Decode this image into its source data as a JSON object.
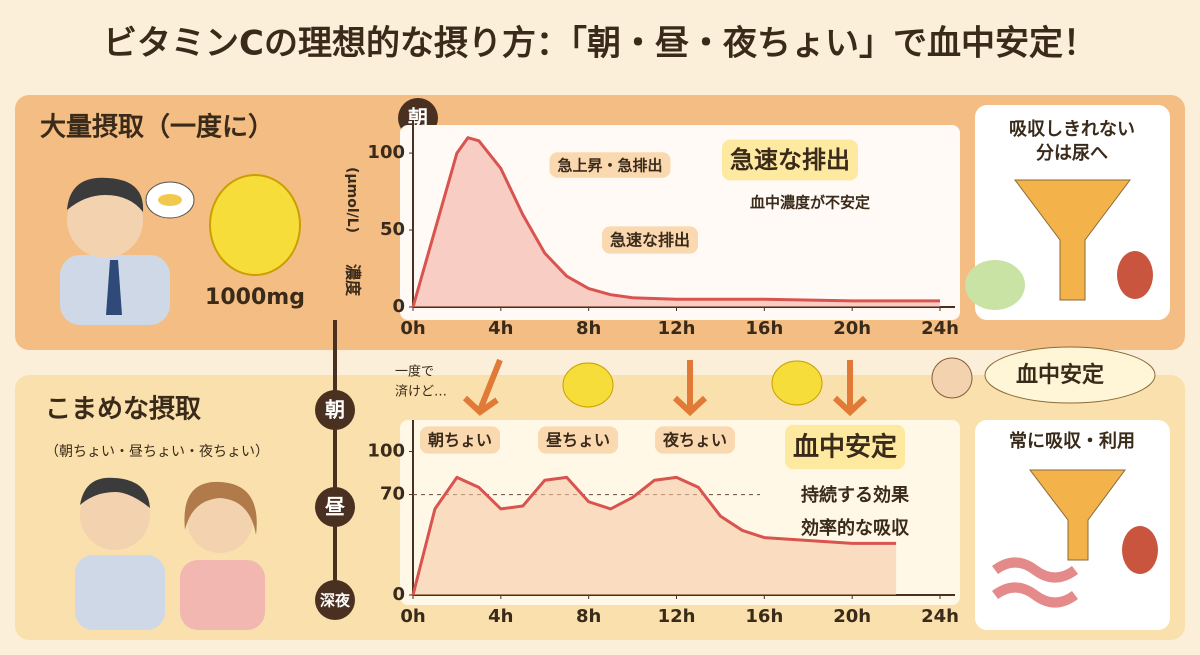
{
  "title": "ビタミンCの理想的な摂り方：「朝・昼・夜ちょい」で血中安定！",
  "top_panel": {
    "heading": "大量摂取（一度に）",
    "dose": "1000mg",
    "time_label": "朝",
    "side_note": [
      "吸収しきれない",
      "分は尿へ"
    ]
  },
  "timeline": [
    "朝",
    "昼",
    "深夜"
  ],
  "bottom_panel": {
    "heading": "こまめな摂取",
    "subheading": "（朝ちょい・昼ちょい・夜ちょい）",
    "aside": [
      "一度で",
      "済けど…"
    ],
    "bubble": "血中安定",
    "side_note": "常に吸収・利用"
  },
  "chart_data": [
    {
      "type": "line",
      "y_label": "濃度",
      "y_unit": "(µmol/L)",
      "color": "#d9534f",
      "fill": "#f3a99a",
      "x": [
        0,
        1,
        2,
        2.5,
        3,
        4,
        5,
        6,
        7,
        8,
        9,
        10,
        12,
        16,
        20,
        24
      ],
      "values": [
        0,
        50,
        100,
        110,
        108,
        90,
        60,
        35,
        20,
        12,
        8,
        6,
        5,
        5,
        4,
        4
      ],
      "xlim": [
        0,
        24
      ],
      "ylim": [
        0,
        115
      ],
      "xticks": [
        {
          "value": 0,
          "label": "0h"
        },
        {
          "value": 4,
          "label": "4h"
        },
        {
          "value": 8,
          "label": "8h"
        },
        {
          "value": 12,
          "label": "12h"
        },
        {
          "value": 16,
          "label": "16h"
        },
        {
          "value": 20,
          "label": "20h"
        },
        {
          "value": 24,
          "label": "24h"
        }
      ],
      "yticks": [
        0,
        50,
        100
      ],
      "annotations": [
        "急上昇・急排出",
        "急速な排出",
        "血中濃度が不安定",
        "急速な排出"
      ]
    },
    {
      "type": "line",
      "color": "#d9534f",
      "fill": "#f6c7a3",
      "x": [
        0,
        1,
        2,
        3,
        4,
        5,
        6,
        7,
        8,
        9,
        10,
        11,
        12,
        13,
        14,
        15,
        16,
        18,
        20,
        22
      ],
      "values": [
        0,
        60,
        82,
        75,
        60,
        62,
        80,
        82,
        65,
        60,
        68,
        80,
        82,
        75,
        55,
        45,
        40,
        38,
        36,
        36
      ],
      "xlim": [
        0,
        24
      ],
      "ylim": [
        0,
        115
      ],
      "reference_line": 70,
      "xticks": [
        {
          "value": 0,
          "label": "0h"
        },
        {
          "value": 4,
          "label": "4h"
        },
        {
          "value": 8,
          "label": "8h"
        },
        {
          "value": 12,
          "label": "12h"
        },
        {
          "value": 16,
          "label": "16h"
        },
        {
          "value": 20,
          "label": "20h"
        },
        {
          "value": 24,
          "label": "24h"
        }
      ],
      "yticks": [
        0,
        70,
        100
      ],
      "annotations": [
        "朝ちょい",
        "昼ちょい",
        "夜ちょい",
        "血中安定",
        "持続する効果",
        "効率的な吸収"
      ]
    }
  ]
}
